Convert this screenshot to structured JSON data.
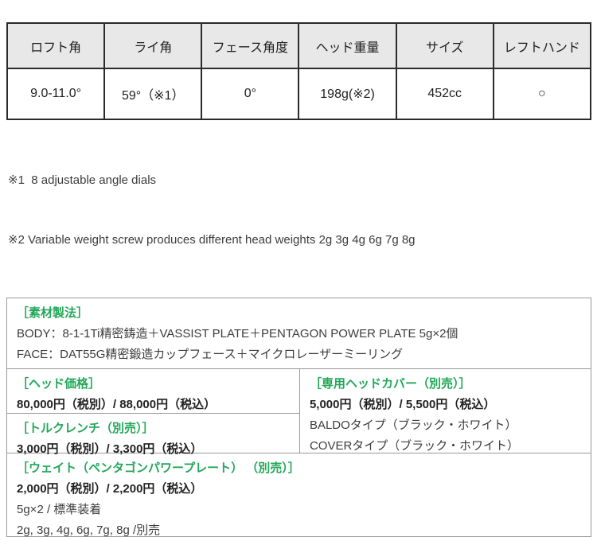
{
  "spec_table": {
    "columns": [
      {
        "header": "ロフト角",
        "value": "9.0-11.0°"
      },
      {
        "header": "ライ角",
        "value": "59°（※1）"
      },
      {
        "header": "フェース角度",
        "value": "0°"
      },
      {
        "header": "ヘッド重量",
        "value": "198g(※2)"
      },
      {
        "header": "サイズ",
        "value": "452cc"
      },
      {
        "header": "レフトハンド",
        "value": "○"
      }
    ]
  },
  "notes": [
    "※1  8 adjustable angle dials",
    "※2 Variable weight screw produces different head weights 2g 3g 4g 6g 7g 8g"
  ],
  "details": {
    "material": {
      "title": "［素材製法］",
      "lines": [
        "BODY：8-1-1Ti精密鋳造＋VASSIST PLATE＋PENTAGON POWER PLATE 5g×2個",
        "FACE：DAT55G精密鍛造カップフェース＋マイクロレーザーミーリング"
      ]
    },
    "head_price": {
      "title": "［ヘッド価格］",
      "price": "80,000円（税別）/ 88,000円（税込）"
    },
    "torque_wrench": {
      "title": "［トルクレンチ（別売）］",
      "price": "3,000円（税別）/ 3,300円（税込）"
    },
    "head_cover": {
      "title": "［専用ヘッドカバー（別売）］",
      "price": "5,000円（税別）/ 5,500円（税込）",
      "lines": [
        "BALDOタイプ（ブラック・ホワイト）",
        "COVERタイプ（ブラック・ホワイト）"
      ]
    },
    "weight": {
      "title": "［ウェイト（ペンタゴンパワープレート） （別売）］",
      "price": "2,000円（税別）/ 2,200円（税込）",
      "lines": [
        "5g×2 / 標準装着",
        "2g, 3g, 4g, 6g, 7g, 8g /別売"
      ]
    }
  },
  "colors": {
    "accent_green": "#21a758",
    "spec_header_bg": "#e8e8e8",
    "spec_border": "#2b2b2b",
    "detail_border": "#999999",
    "body_text": "#3c3c3c"
  }
}
